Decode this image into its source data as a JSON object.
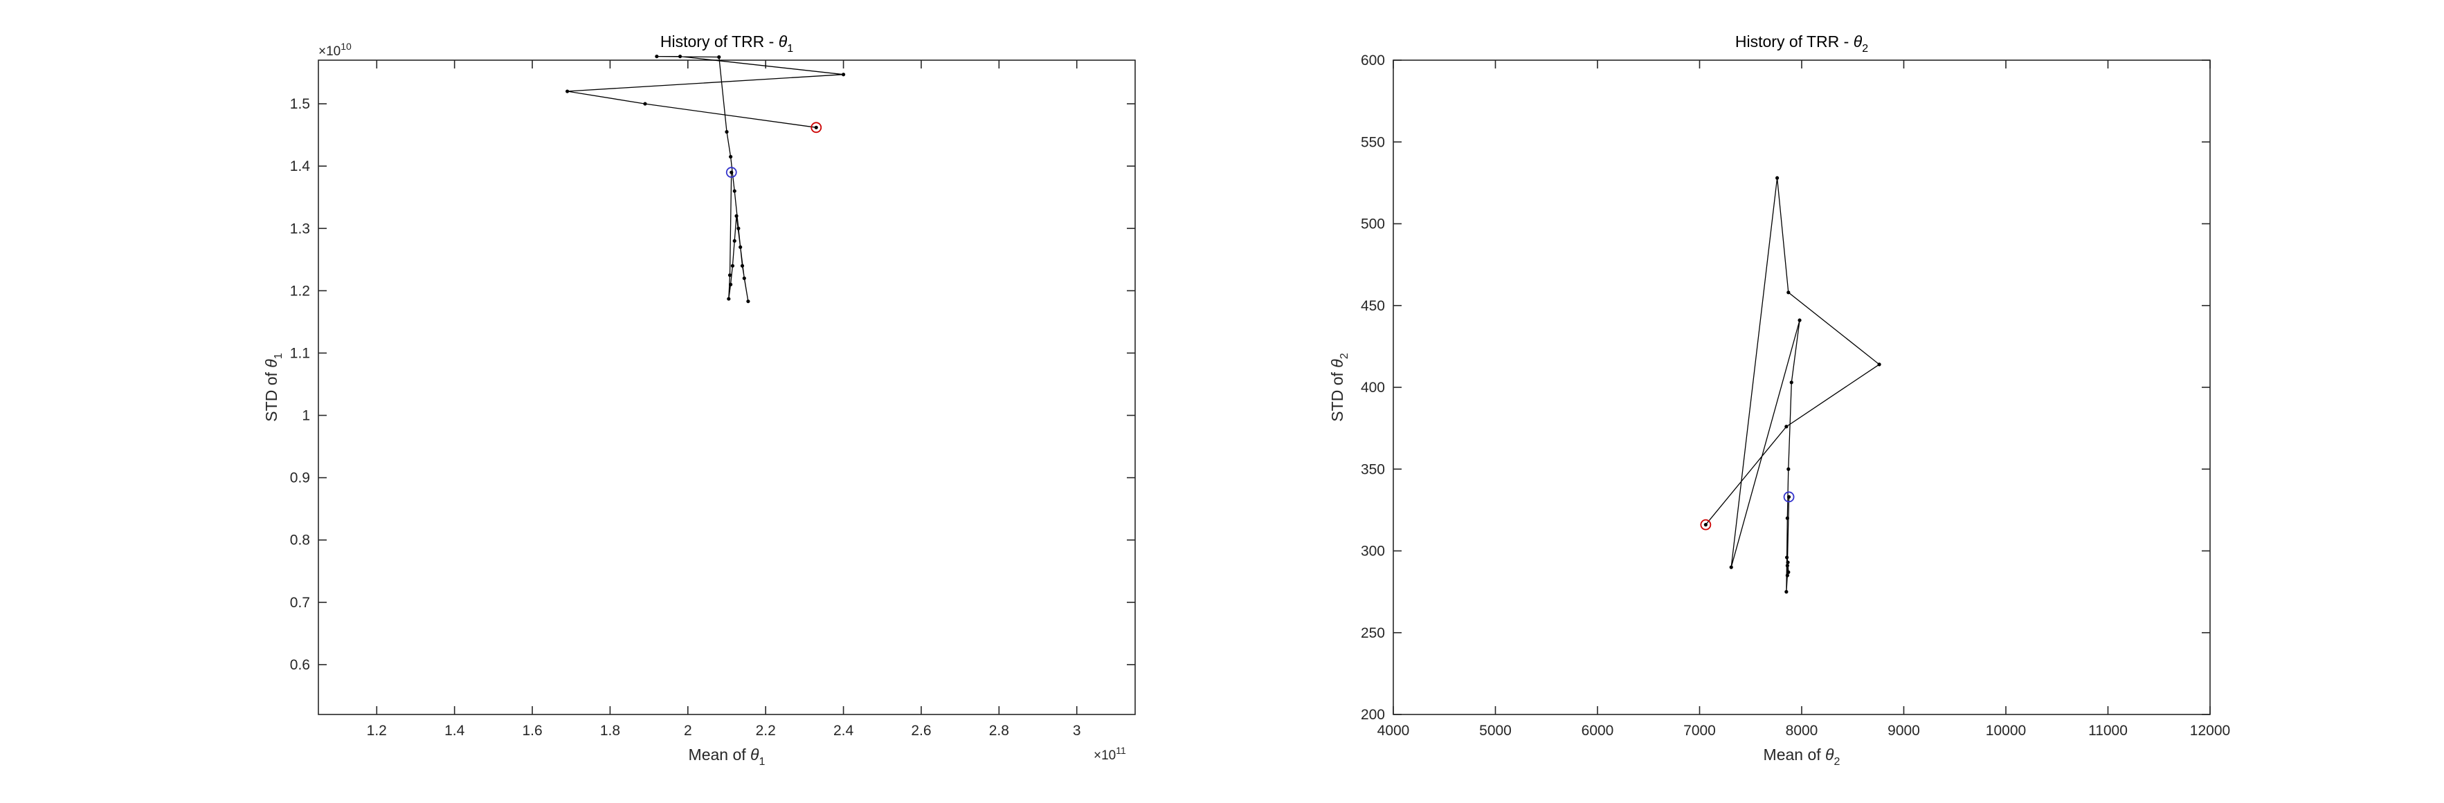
{
  "colors": {
    "trajectory": "#000000",
    "start_marker": "#cc0000",
    "end_marker": "#3333cc",
    "axes": "#262626"
  },
  "chart_data": [
    {
      "type": "line",
      "title": "History of TRR - ",
      "title_symbol": "θ",
      "title_sub": "1",
      "xlabel": "Mean of ",
      "xlabel_symbol": "θ",
      "xlabel_sub": "1",
      "ylabel": "STD of ",
      "ylabel_symbol": "θ",
      "ylabel_sub": "1",
      "x_exponent_base": "×10",
      "x_exponent": "11",
      "y_exponent_base": "×10",
      "y_exponent": "10",
      "xlim": [
        1.05,
        3.15
      ],
      "ylim": [
        0.52,
        1.57
      ],
      "xticks": [
        1.2,
        1.4,
        1.6,
        1.8,
        2,
        2.2,
        2.4,
        2.6,
        2.8,
        3
      ],
      "xtick_labels": [
        "1.2",
        "1.4",
        "1.6",
        "1.8",
        "2",
        "2.2",
        "2.4",
        "2.6",
        "2.8",
        "3"
      ],
      "yticks": [
        0.6,
        0.7,
        0.8,
        0.9,
        1,
        1.1,
        1.2,
        1.3,
        1.4,
        1.5
      ],
      "ytick_labels": [
        "0.6",
        "0.7",
        "0.8",
        "0.9",
        "1",
        "1.1",
        "1.2",
        "1.3",
        "1.4",
        "1.5"
      ],
      "grid": false,
      "x": [
        2.33,
        1.89,
        1.69,
        2.4,
        1.98,
        1.92,
        2.08,
        2.1,
        2.11,
        2.12,
        2.13,
        2.14,
        2.155,
        2.145,
        2.135,
        2.125,
        2.12,
        2.115,
        2.11,
        2.105,
        2.108,
        2.112
      ],
      "y": [
        1.462,
        1.5,
        1.52,
        1.547,
        1.576,
        1.576,
        1.575,
        1.455,
        1.415,
        1.36,
        1.3,
        1.24,
        1.183,
        1.22,
        1.27,
        1.32,
        1.28,
        1.24,
        1.21,
        1.187,
        1.225,
        1.39
      ],
      "start": [
        2.33,
        1.462
      ],
      "end": [
        2.112,
        1.39
      ]
    },
    {
      "type": "line",
      "title": "History of TRR - ",
      "title_symbol": "θ",
      "title_sub": "2",
      "xlabel": "Mean of ",
      "xlabel_symbol": "θ",
      "xlabel_sub": "2",
      "ylabel": "STD of ",
      "ylabel_symbol": "θ",
      "ylabel_sub": "2",
      "xlim": [
        4000,
        12000
      ],
      "ylim": [
        200,
        600
      ],
      "xticks": [
        4000,
        5000,
        6000,
        7000,
        8000,
        9000,
        10000,
        11000,
        12000
      ],
      "xtick_labels": [
        "4000",
        "5000",
        "6000",
        "7000",
        "8000",
        "9000",
        "10000",
        "11000",
        "12000"
      ],
      "yticks": [
        200,
        250,
        300,
        350,
        400,
        450,
        500,
        550,
        600
      ],
      "ytick_labels": [
        "200",
        "250",
        "300",
        "350",
        "400",
        "450",
        "500",
        "550",
        "600"
      ],
      "grid": false,
      "x": [
        7060,
        7850,
        8760,
        7870,
        7760,
        7310,
        7980,
        7900,
        7870,
        7860,
        7855,
        7850,
        7860,
        7865,
        7870,
        7860,
        7875
      ],
      "y": [
        316,
        376,
        414,
        458,
        528,
        290,
        441,
        403,
        350,
        320,
        296,
        275,
        285,
        293,
        287,
        291,
        333
      ],
      "start": [
        7060,
        316
      ],
      "end": [
        7875,
        333
      ]
    }
  ]
}
